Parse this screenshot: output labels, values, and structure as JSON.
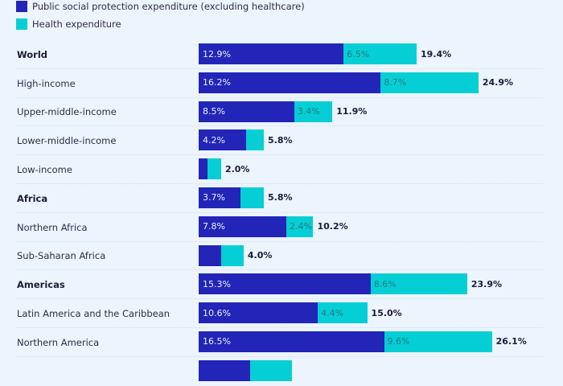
{
  "chart_data": {
    "type": "bar",
    "orientation": "horizontal",
    "stacked": true,
    "title": "",
    "xlabel": "",
    "ylabel": "",
    "legend_position": "top-left",
    "grid": false,
    "categories": [
      "World",
      "High-income",
      "Upper-middle-income",
      "Lower-middle-income",
      "Low-income",
      "Africa",
      "Northern Africa",
      "Sub-Saharan Africa",
      "Americas",
      "Latin America and the Caribbean",
      "Northern America"
    ],
    "bold_categories": [
      "World",
      "Africa",
      "Americas"
    ],
    "series": [
      {
        "name": "Public social protection expenditure (excluding healthcare)",
        "color": "#2225b7",
        "values": [
          12.9,
          16.2,
          8.5,
          4.2,
          0.8,
          3.7,
          7.8,
          2.0,
          15.3,
          10.6,
          16.5
        ],
        "labels": [
          "12.9%",
          "16.2%",
          "8.5%",
          "4.2%",
          "",
          "3.7%",
          "7.8%",
          "",
          "15.3%",
          "10.6%",
          "16.5%"
        ]
      },
      {
        "name": "Health expenditure",
        "color": "#05cfd4",
        "values": [
          6.5,
          8.7,
          3.4,
          1.6,
          1.2,
          2.1,
          2.4,
          2.0,
          8.6,
          4.4,
          9.6
        ],
        "labels": [
          "6.5%",
          "8.7%",
          "3.4%",
          "",
          "",
          "",
          "2.4%",
          "",
          "8.6%",
          "4.4%",
          "9.6%"
        ]
      }
    ],
    "totals": [
      19.4,
      24.9,
      11.9,
      5.8,
      2.0,
      5.8,
      10.2,
      4.0,
      23.9,
      15.0,
      26.1
    ],
    "total_labels": [
      "19.4%",
      "24.9%",
      "11.9%",
      "5.8%",
      "2.0%",
      "5.8%",
      "10.2%",
      "4.0%",
      "23.9%",
      "15.0%",
      "26.1%"
    ],
    "partial_row": {
      "social": 4.6,
      "health": 3.7
    },
    "xlim": [
      0,
      30
    ]
  }
}
